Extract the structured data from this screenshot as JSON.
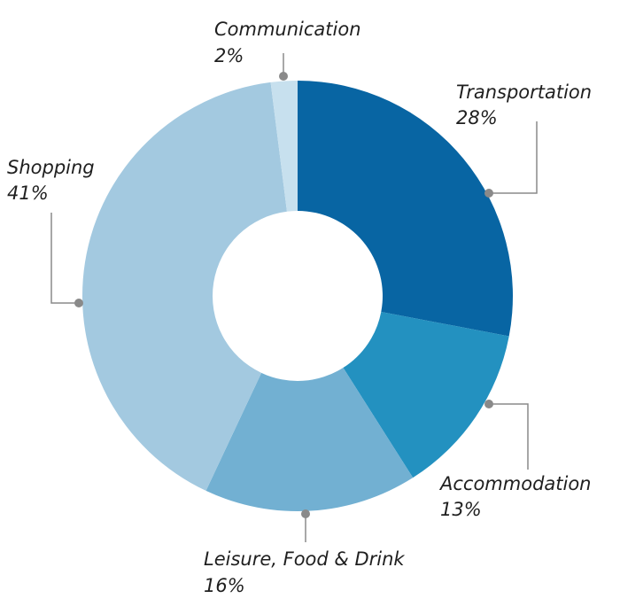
{
  "chart_data": {
    "type": "pie",
    "title": "",
    "categories": [
      "Transportation",
      "Accommodation",
      "Leisure, Food & Drink",
      "Shopping",
      "Communication"
    ],
    "values": [
      28,
      13,
      16,
      41,
      2
    ],
    "value_labels": [
      "28%",
      "13%",
      "16%",
      "41%",
      "2%"
    ],
    "colors": [
      "#0865a3",
      "#2391c0",
      "#72b0d2",
      "#a3c9e0",
      "#c7e0ee"
    ],
    "donut": true,
    "start_angle_deg": 0,
    "direction": "clockwise",
    "legend": "none"
  }
}
